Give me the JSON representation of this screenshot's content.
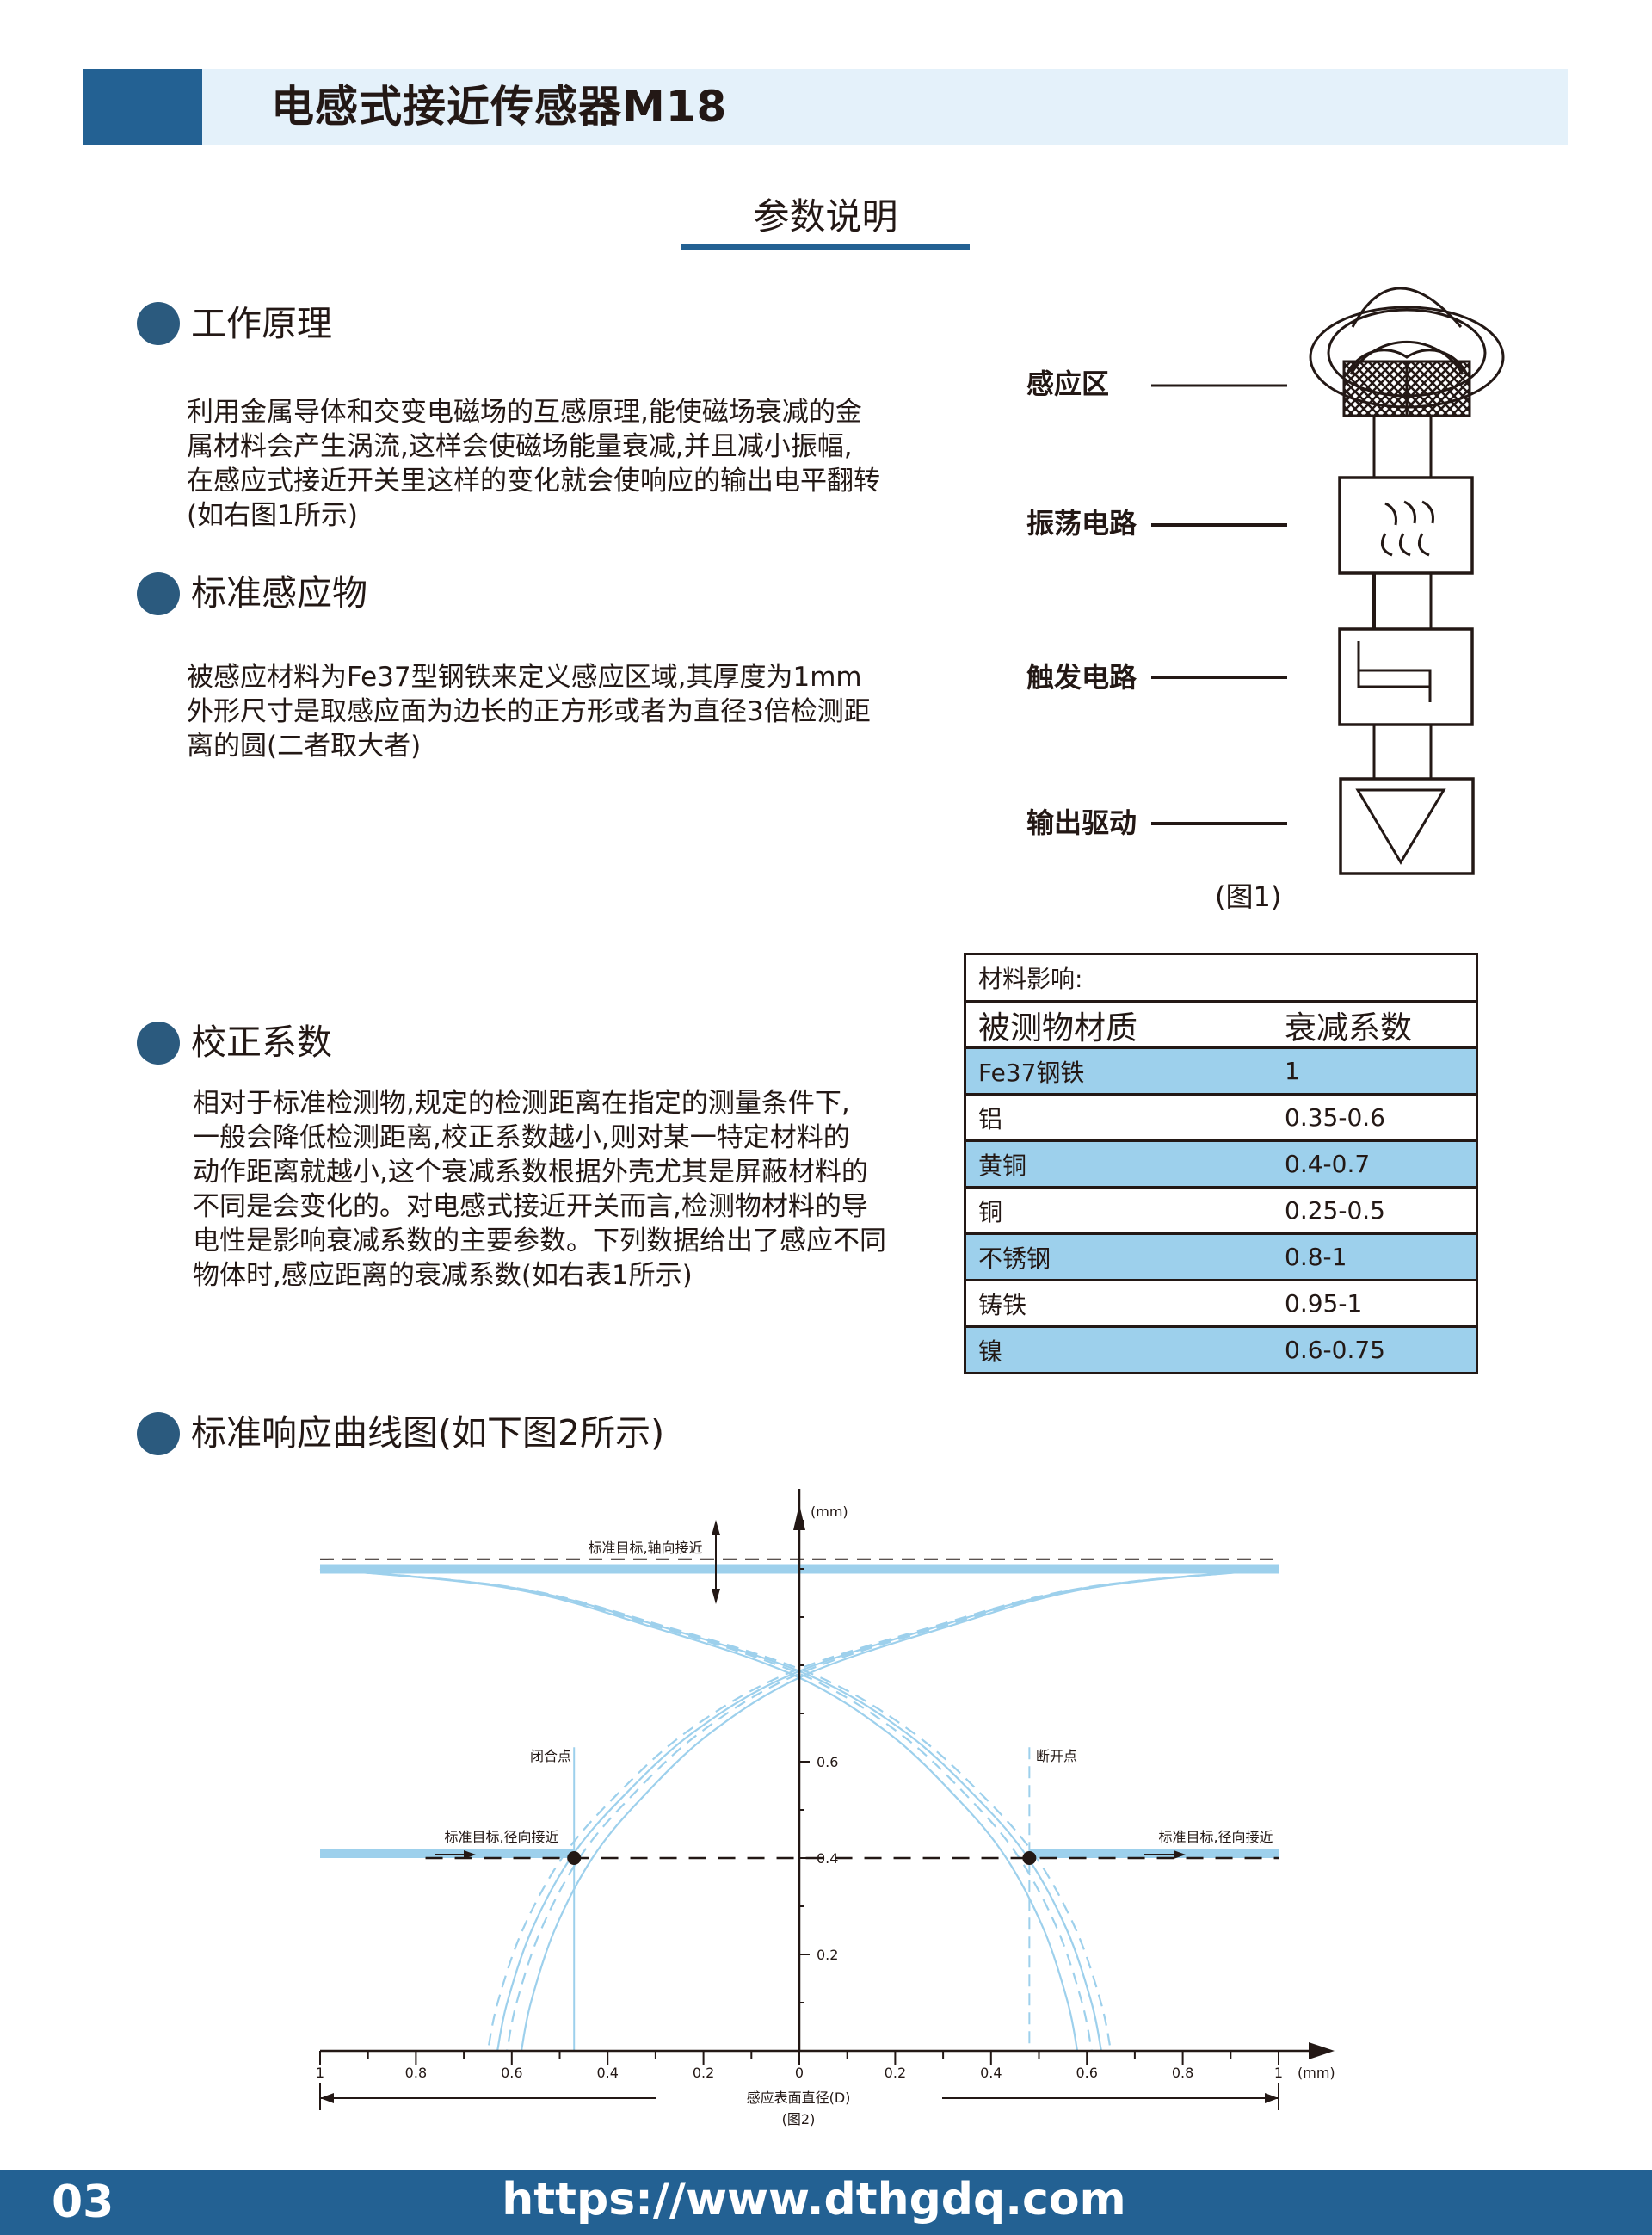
{
  "header": {
    "title": "电感式接近传感器M18",
    "subtitle": "参数说明"
  },
  "colors": {
    "brand": "#236193",
    "header_bg": "#e4f1fa",
    "highlight": "#9dd0ec",
    "curve": "#9dd0ec"
  },
  "sections": {
    "principle": {
      "heading": "工作原理",
      "lines": [
        "利用金属导体和交变电磁场的互感原理,能使磁场衰减的金",
        "属材料会产生涡流,这样会使磁场能量衰减,并且减小振幅,",
        "在感应式接近开关里这样的变化就会使响应的输出电平翻转",
        "(如右图1所示)"
      ]
    },
    "standard": {
      "heading": "标准感应物",
      "lines": [
        "被感应材料为Fe37型钢铁来定义感应区域,其厚度为1mm",
        "外形尺寸是取感应面为边长的正方形或者为直径3倍检测距",
        "离的圆(二者取大者)"
      ]
    },
    "correction": {
      "heading": "校正系数",
      "lines": [
        "相对于标准检测物,规定的检测距离在指定的测量条件下,",
        "一般会降低检测距离,校正系数越小,则对某一特定材料的",
        "动作距离就越小,这个衰减系数根据外壳尤其是屏蔽材料的",
        "不同是会变化的。对电感式接近开关而言,检测物材料的导",
        "电性是影响衰减系数的主要参数。下列数据给出了感应不同",
        "物体时,感应距离的衰减系数(如右表1所示)"
      ]
    },
    "curve": {
      "heading": "标准响应曲线图(如下图2所示)"
    }
  },
  "figure1": {
    "labels": [
      "感应区",
      "振荡电路",
      "触发电路",
      "输出驱动"
    ],
    "caption": "(图1)",
    "icons": [
      "coil-field-icon",
      "oscillation-icon",
      "trigger-icon",
      "output-triangle-icon"
    ]
  },
  "table": {
    "title": "材料影响:",
    "headers": [
      "被测物材质",
      "衰减系数"
    ],
    "rows": [
      [
        "Fe37钢铁",
        "1"
      ],
      [
        "铝",
        "0.35-0.6"
      ],
      [
        "黄铜",
        "0.4-0.7"
      ],
      [
        "铜",
        "0.25-0.5"
      ],
      [
        "不锈钢",
        "0.8-1"
      ],
      [
        "铸铁",
        "0.95-1"
      ],
      [
        "镍",
        "0.6-0.75"
      ]
    ]
  },
  "chart_data": {
    "type": "line",
    "caption": "(图2)",
    "xlabel": "感应表面直径(D)",
    "x_unit": "(mm)",
    "y_unit": "(mm)",
    "xlim": [
      -1,
      1
    ],
    "ylim": [
      0,
      1.1
    ],
    "x_tick_labels": [
      "1",
      "0.8",
      "0.6",
      "0.4",
      "0.2",
      "0",
      "0.2",
      "0.4",
      "0.6",
      "0.8",
      "1"
    ],
    "x_tick_values": [
      -1,
      -0.8,
      -0.6,
      -0.4,
      -0.2,
      0,
      0.2,
      0.4,
      0.6,
      0.8,
      1
    ],
    "y_tick_labels": [
      "0.2",
      "0.4",
      "0.6"
    ],
    "y_tick_values": [
      0.2,
      0.4,
      0.6
    ],
    "grid": false,
    "curve_family": {
      "descending_points": [
        [
          -1,
          1.0
        ],
        [
          -0.6,
          0.96
        ],
        [
          -0.3,
          0.88
        ],
        [
          0,
          0.78
        ],
        [
          0.2,
          0.66
        ],
        [
          0.35,
          0.52
        ],
        [
          0.45,
          0.4
        ],
        [
          0.53,
          0.25
        ],
        [
          0.58,
          0.1
        ],
        [
          0.6,
          0
        ]
      ],
      "offsets": [
        -0.02,
        0.01,
        0.03,
        0.05
      ],
      "styles": [
        "solid",
        "dashed",
        "solid",
        "dashed"
      ],
      "mirrored": true
    },
    "axial_target": {
      "label": "标准目标,轴向接近",
      "y": 1.0
    },
    "radial_target_left": {
      "label": "标准目标,径向接近",
      "y": 0.4,
      "x_range": [
        -1,
        -0.47
      ]
    },
    "radial_target_right": {
      "label": "标准目标,径向接近",
      "y": 0.4,
      "x_range": [
        0.48,
        1
      ]
    },
    "close_point": {
      "label": "闭合点",
      "x": -0.47,
      "y": 0.4
    },
    "open_point": {
      "label": "断开点",
      "x": 0.48,
      "y": 0.4
    }
  },
  "footer": {
    "page": "03",
    "url": "https://www.dthgdq.com"
  }
}
